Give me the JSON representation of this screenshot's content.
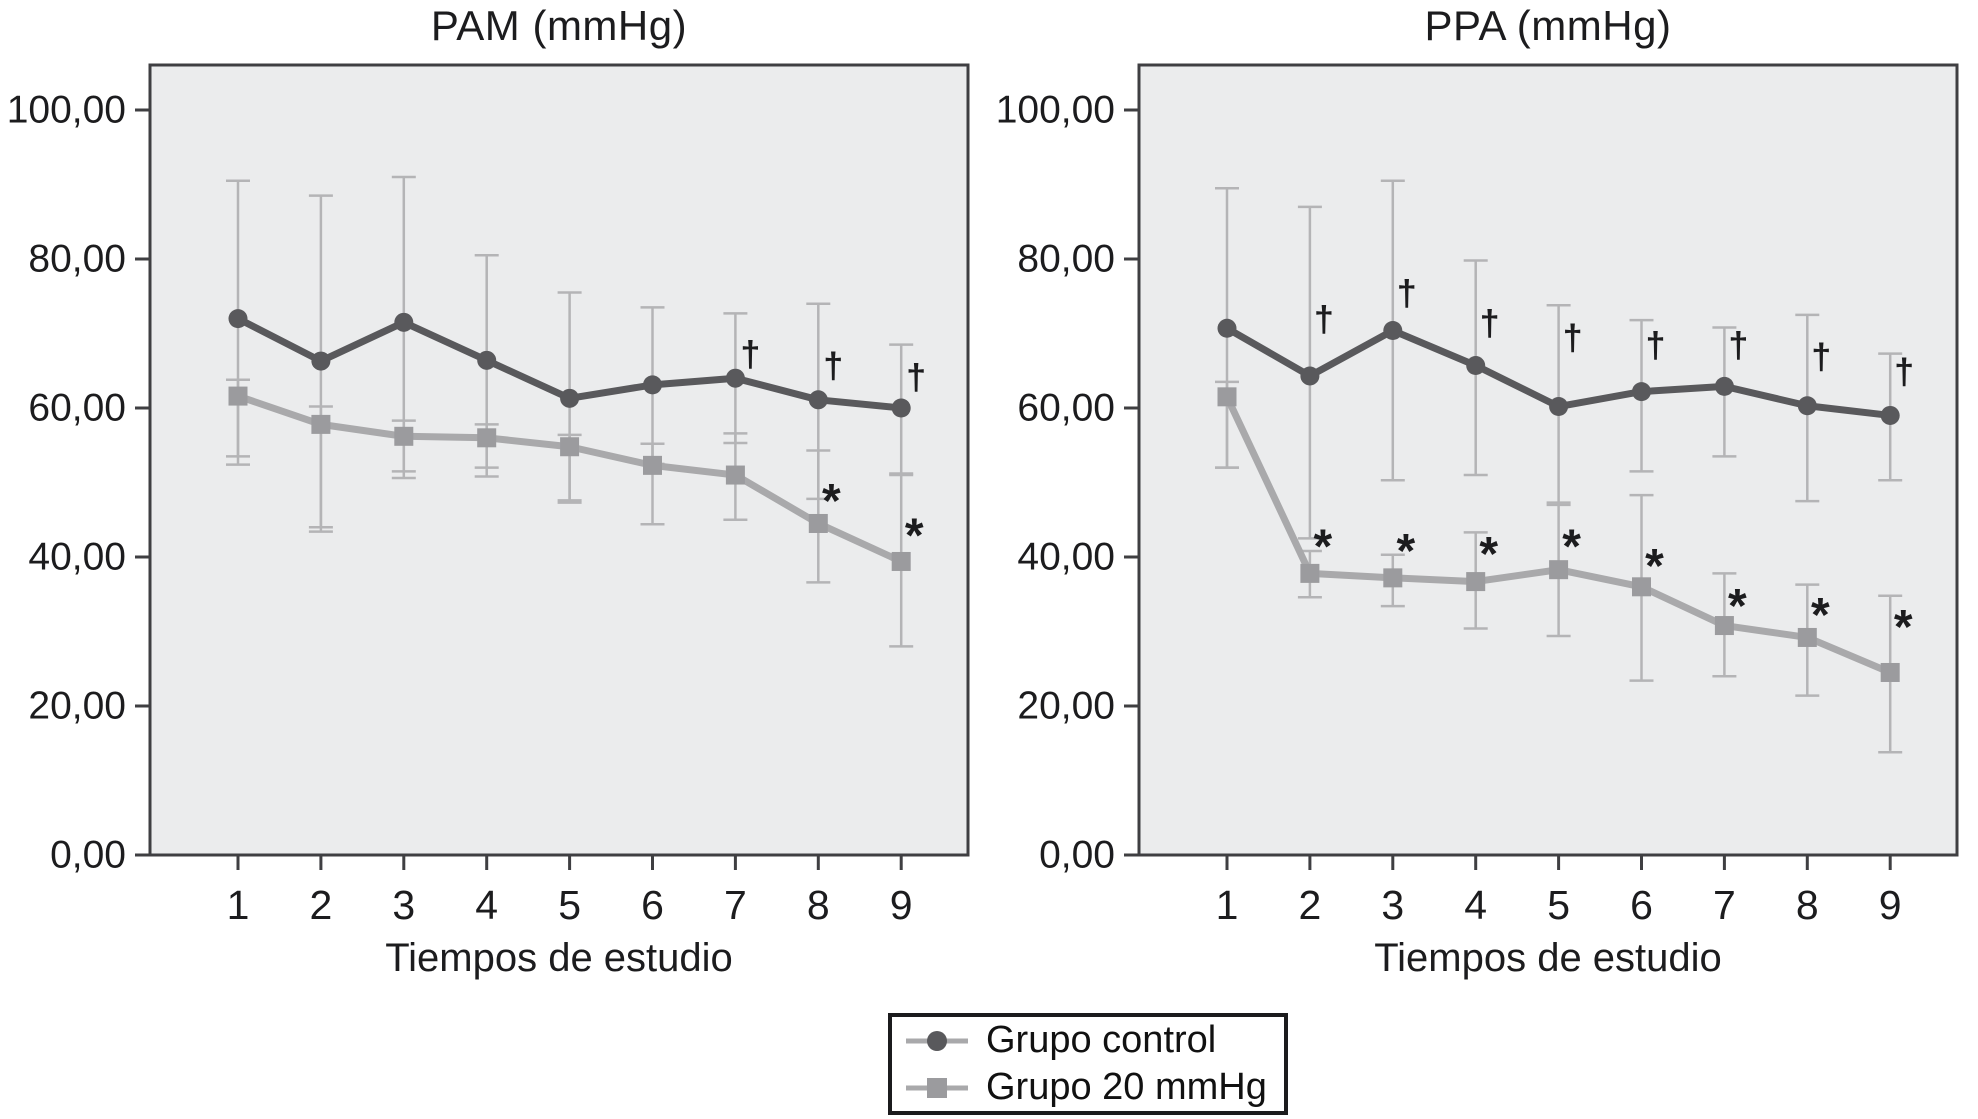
{
  "colors": {
    "page_bg": "#ffffff",
    "plot_bg": "#ebeced",
    "frame": "#3f3f42",
    "control_line": "#59595c",
    "control_marker": "#59595c",
    "mmhg20_line": "#a9a9ab",
    "mmhg20_marker": "#9b9b9e",
    "error_bar": "#b4b4b6",
    "text": "#1c1c1e",
    "legend_border": "#1b1b1d"
  },
  "legend": {
    "items": [
      {
        "label": "Grupo control",
        "marker": "circle",
        "series_id": "control"
      },
      {
        "label": "Grupo 20 mmHg",
        "marker": "square",
        "series_id": "mmhg20"
      }
    ]
  },
  "chart_data": [
    {
      "type": "line",
      "title": "PAM (mmHg)",
      "xlabel": "Tiempos de estudio",
      "ylabel": "",
      "ylim": [
        0,
        106
      ],
      "grid": false,
      "x": [
        "1",
        "2",
        "3",
        "4",
        "5",
        "6",
        "7",
        "8",
        "9"
      ],
      "yticks": [
        {
          "value": 100,
          "label": "100,00"
        },
        {
          "value": 80,
          "label": "80,00"
        },
        {
          "value": 60,
          "label": "60,00"
        },
        {
          "value": 40,
          "label": "40,00"
        },
        {
          "value": 20,
          "label": "20,00"
        },
        {
          "value": 0,
          "label": "0,00"
        }
      ],
      "series": [
        {
          "id": "control",
          "name": "Grupo control",
          "marker": "circle",
          "line_color": "#59595c",
          "marker_color": "#59595c",
          "values": [
            72.0,
            66.3,
            71.5,
            66.4,
            61.3,
            63.1,
            64.0,
            61.1,
            60.0
          ],
          "err_high": [
            90.5,
            88.5,
            91.0,
            80.5,
            75.5,
            73.5,
            72.7,
            74.0,
            68.5
          ],
          "err_low": [
            53.5,
            44.0,
            51.5,
            52.0,
            47.3,
            52.5,
            55.3,
            47.8,
            51.2
          ],
          "annotations": [
            {
              "x": 7,
              "dx": 15,
              "y": 67.3,
              "text": "†"
            },
            {
              "x": 8,
              "dx": 15,
              "y": 65.8,
              "text": "†"
            },
            {
              "x": 9,
              "dx": 15,
              "y": 64.2,
              "text": "†"
            }
          ]
        },
        {
          "id": "mmhg20",
          "name": "Grupo 20 mmHg",
          "marker": "square",
          "line_color": "#a9a9ab",
          "marker_color": "#9b9b9e",
          "values": [
            61.6,
            57.8,
            56.2,
            56.0,
            54.8,
            52.3,
            51.0,
            44.5,
            39.4
          ],
          "err_high": [
            63.8,
            60.2,
            58.3,
            57.8,
            56.4,
            55.2,
            56.6,
            54.3,
            51.0
          ],
          "err_low": [
            52.4,
            43.4,
            50.6,
            50.8,
            47.6,
            44.4,
            45.0,
            36.6,
            28.0
          ],
          "annotations": [
            {
              "x": 8,
              "dx": 13,
              "y": 47.9,
              "text": "*"
            },
            {
              "x": 9,
              "dx": 13,
              "y": 43.3,
              "text": "*"
            }
          ]
        }
      ]
    },
    {
      "type": "line",
      "title": "PPA (mmHg)",
      "xlabel": "Tiempos de estudio",
      "ylabel": "",
      "ylim": [
        0,
        106
      ],
      "grid": false,
      "x": [
        "1",
        "2",
        "3",
        "4",
        "5",
        "6",
        "7",
        "8",
        "9"
      ],
      "yticks": [
        {
          "value": 100,
          "label": "100,00"
        },
        {
          "value": 80,
          "label": "80,00"
        },
        {
          "value": 60,
          "label": "60,00"
        },
        {
          "value": 40,
          "label": "40,00"
        },
        {
          "value": 20,
          "label": "20,00"
        },
        {
          "value": 0,
          "label": "0,00"
        }
      ],
      "series": [
        {
          "id": "control",
          "name": "Grupo control",
          "marker": "circle",
          "line_color": "#59595c",
          "marker_color": "#59595c",
          "values": [
            70.7,
            64.3,
            70.4,
            65.7,
            60.2,
            62.2,
            62.9,
            60.3,
            59.0
          ],
          "err_high": [
            89.5,
            87.0,
            90.5,
            79.8,
            73.8,
            71.8,
            70.8,
            72.5,
            67.3
          ],
          "err_low": [
            52.0,
            42.5,
            50.3,
            51.0,
            47.0,
            51.5,
            53.5,
            47.5,
            50.3
          ],
          "annotations": [
            {
              "x": 2,
              "dx": 14,
              "y": 72.0,
              "text": "†"
            },
            {
              "x": 3,
              "dx": 14,
              "y": 75.5,
              "text": "†"
            },
            {
              "x": 4,
              "dx": 14,
              "y": 71.5,
              "text": "†"
            },
            {
              "x": 5,
              "dx": 14,
              "y": 69.5,
              "text": "†"
            },
            {
              "x": 6,
              "dx": 14,
              "y": 68.5,
              "text": "†"
            },
            {
              "x": 7,
              "dx": 14,
              "y": 68.5,
              "text": "†"
            },
            {
              "x": 8,
              "dx": 14,
              "y": 67.0,
              "text": "†"
            },
            {
              "x": 9,
              "dx": 14,
              "y": 65.0,
              "text": "†"
            }
          ]
        },
        {
          "id": "mmhg20",
          "name": "Grupo 20 mmHg",
          "marker": "square",
          "line_color": "#a9a9ab",
          "marker_color": "#9b9b9e",
          "values": [
            61.5,
            37.8,
            37.2,
            36.7,
            38.3,
            36.0,
            30.8,
            29.2,
            24.5
          ],
          "err_high": [
            63.5,
            40.8,
            40.3,
            43.3,
            47.3,
            48.3,
            37.8,
            36.3,
            34.8
          ],
          "err_low": [
            52.0,
            34.6,
            33.4,
            30.4,
            29.4,
            23.4,
            24.0,
            21.4,
            13.8
          ],
          "annotations": [
            {
              "x": 2,
              "dx": 13,
              "y": 41.8,
              "text": "*"
            },
            {
              "x": 3,
              "dx": 13,
              "y": 41.2,
              "text": "*"
            },
            {
              "x": 4,
              "dx": 13,
              "y": 40.8,
              "text": "*"
            },
            {
              "x": 5,
              "dx": 13,
              "y": 41.8,
              "text": "*"
            },
            {
              "x": 6,
              "dx": 13,
              "y": 39.2,
              "text": "*"
            },
            {
              "x": 7,
              "dx": 13,
              "y": 33.8,
              "text": "*"
            },
            {
              "x": 8,
              "dx": 13,
              "y": 32.6,
              "text": "*"
            },
            {
              "x": 9,
              "dx": 13,
              "y": 31.0,
              "text": "*"
            }
          ]
        }
      ]
    }
  ]
}
